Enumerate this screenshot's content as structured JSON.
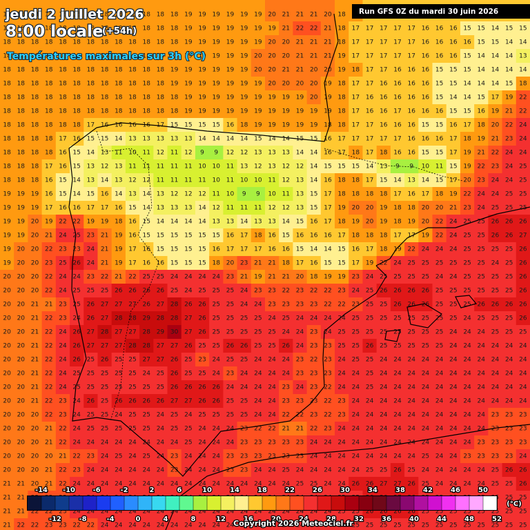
{
  "header": {
    "title": "jeudi 2 juillet 2026",
    "time": "8:00 locale",
    "lead": "(+54h)",
    "subtitle": "Températures maximales sur 3h (°C)",
    "run": "Run GFS 0Z du mardi 30 juin 2026"
  },
  "grid": {
    "rows": [
      [
        18,
        18,
        18,
        18,
        18,
        18,
        18,
        18,
        18,
        18,
        18,
        18,
        18,
        19,
        19,
        19,
        19,
        19,
        19,
        20,
        21,
        21,
        21,
        20,
        18,
        18,
        17,
        17,
        17,
        17,
        17,
        17,
        16,
        16,
        16,
        16,
        16,
        16
      ],
      [
        18,
        18,
        18,
        18,
        18,
        18,
        18,
        18,
        18,
        18,
        18,
        18,
        18,
        19,
        19,
        19,
        19,
        19,
        19,
        19,
        21,
        22,
        22,
        21,
        18,
        17,
        17,
        17,
        17,
        17,
        16,
        16,
        16,
        15,
        15,
        14,
        15,
        15
      ],
      [
        18,
        18,
        18,
        18,
        18,
        18,
        18,
        18,
        18,
        18,
        18,
        18,
        18,
        19,
        19,
        19,
        19,
        19,
        19,
        20,
        20,
        21,
        21,
        21,
        18,
        17,
        17,
        17,
        17,
        17,
        16,
        16,
        16,
        16,
        15,
        15,
        14,
        14
      ],
      [
        18,
        18,
        18,
        18,
        18,
        18,
        18,
        18,
        18,
        18,
        18,
        18,
        19,
        19,
        19,
        19,
        19,
        19,
        20,
        20,
        20,
        21,
        21,
        21,
        19,
        17,
        17,
        17,
        17,
        17,
        16,
        16,
        16,
        15,
        14,
        14,
        14,
        13
      ],
      [
        18,
        18,
        18,
        18,
        18,
        18,
        18,
        18,
        18,
        18,
        18,
        18,
        19,
        19,
        19,
        19,
        19,
        19,
        20,
        20,
        21,
        21,
        20,
        20,
        19,
        18,
        17,
        17,
        16,
        16,
        16,
        15,
        15,
        15,
        14,
        14,
        14,
        14
      ],
      [
        18,
        18,
        18,
        18,
        18,
        18,
        18,
        18,
        18,
        18,
        18,
        18,
        19,
        19,
        19,
        19,
        19,
        19,
        19,
        20,
        20,
        20,
        20,
        19,
        18,
        17,
        17,
        16,
        16,
        16,
        16,
        15,
        15,
        14,
        14,
        14,
        15,
        18
      ],
      [
        18,
        18,
        18,
        18,
        18,
        18,
        18,
        18,
        18,
        18,
        18,
        18,
        18,
        19,
        19,
        19,
        19,
        19,
        19,
        19,
        19,
        19,
        20,
        19,
        18,
        17,
        16,
        16,
        16,
        16,
        16,
        15,
        14,
        14,
        15,
        17,
        19,
        22
      ],
      [
        18,
        18,
        18,
        18,
        18,
        18,
        18,
        18,
        18,
        18,
        18,
        18,
        18,
        19,
        19,
        19,
        19,
        19,
        19,
        19,
        19,
        19,
        19,
        19,
        18,
        17,
        16,
        16,
        17,
        16,
        16,
        16,
        15,
        15,
        16,
        19,
        21,
        22
      ],
      [
        18,
        18,
        18,
        18,
        18,
        18,
        17,
        16,
        16,
        16,
        16,
        17,
        15,
        15,
        15,
        15,
        16,
        18,
        19,
        19,
        19,
        19,
        19,
        18,
        18,
        17,
        17,
        16,
        16,
        16,
        15,
        15,
        16,
        17,
        18,
        20,
        22,
        24
      ],
      [
        18,
        18,
        18,
        18,
        17,
        16,
        15,
        15,
        14,
        13,
        13,
        13,
        13,
        13,
        14,
        14,
        14,
        14,
        15,
        14,
        14,
        15,
        15,
        16,
        17,
        17,
        17,
        17,
        17,
        16,
        16,
        16,
        17,
        18,
        19,
        21,
        23,
        24
      ],
      [
        18,
        18,
        18,
        18,
        16,
        15,
        14,
        13,
        11,
        10,
        11,
        12,
        11,
        12,
        9,
        9,
        12,
        12,
        13,
        13,
        13,
        14,
        14,
        16,
        17,
        18,
        17,
        18,
        16,
        16,
        15,
        15,
        17,
        19,
        21,
        22,
        24,
        24
      ],
      [
        18,
        18,
        18,
        17,
        16,
        15,
        13,
        12,
        13,
        11,
        11,
        11,
        11,
        11,
        10,
        10,
        11,
        13,
        12,
        13,
        12,
        12,
        14,
        15,
        15,
        15,
        14,
        13,
        9,
        9,
        10,
        11,
        15,
        19,
        22,
        23,
        24,
        25
      ],
      [
        18,
        18,
        18,
        16,
        15,
        14,
        13,
        14,
        13,
        12,
        12,
        11,
        11,
        11,
        11,
        10,
        11,
        10,
        10,
        11,
        12,
        13,
        14,
        16,
        18,
        18,
        17,
        15,
        14,
        13,
        14,
        15,
        17,
        20,
        23,
        24,
        24,
        25
      ],
      [
        19,
        19,
        19,
        16,
        15,
        14,
        15,
        16,
        14,
        13,
        14,
        13,
        12,
        12,
        12,
        11,
        10,
        9,
        9,
        10,
        11,
        13,
        15,
        17,
        18,
        18,
        18,
        18,
        17,
        16,
        17,
        18,
        19,
        22,
        24,
        24,
        25,
        25
      ],
      [
        19,
        19,
        19,
        17,
        16,
        16,
        17,
        17,
        16,
        15,
        14,
        13,
        13,
        13,
        14,
        12,
        11,
        11,
        11,
        12,
        12,
        13,
        15,
        17,
        19,
        20,
        20,
        19,
        18,
        18,
        20,
        20,
        21,
        23,
        24,
        25,
        25,
        25
      ],
      [
        19,
        19,
        20,
        19,
        22,
        22,
        19,
        19,
        18,
        16,
        15,
        14,
        14,
        14,
        14,
        13,
        13,
        14,
        13,
        13,
        14,
        15,
        16,
        17,
        18,
        19,
        20,
        19,
        18,
        19,
        20,
        22,
        24,
        25,
        25,
        26,
        26,
        26
      ],
      [
        19,
        19,
        20,
        21,
        24,
        25,
        23,
        21,
        19,
        16,
        15,
        15,
        15,
        15,
        15,
        15,
        16,
        17,
        18,
        16,
        15,
        16,
        16,
        16,
        17,
        18,
        18,
        18,
        17,
        17,
        19,
        22,
        24,
        25,
        25,
        26,
        26,
        27
      ],
      [
        19,
        20,
        20,
        22,
        23,
        23,
        24,
        21,
        19,
        17,
        16,
        15,
        15,
        15,
        15,
        16,
        17,
        17,
        17,
        16,
        16,
        15,
        14,
        14,
        15,
        16,
        17,
        18,
        19,
        22,
        24,
        24,
        24,
        25,
        25,
        25,
        25,
        26
      ],
      [
        19,
        20,
        20,
        23,
        25,
        26,
        24,
        21,
        19,
        17,
        16,
        16,
        15,
        15,
        15,
        18,
        20,
        23,
        21,
        21,
        18,
        17,
        16,
        15,
        15,
        17,
        19,
        22,
        24,
        25,
        25,
        25,
        25,
        25,
        25,
        24,
        25,
        26
      ],
      [
        20,
        20,
        20,
        22,
        24,
        24,
        23,
        22,
        21,
        22,
        25,
        25,
        24,
        24,
        24,
        24,
        23,
        21,
        19,
        21,
        21,
        20,
        18,
        19,
        19,
        23,
        24,
        25,
        25,
        25,
        25,
        24,
        24,
        25,
        25,
        25,
        25,
        26
      ],
      [
        20,
        20,
        20,
        22,
        24,
        25,
        25,
        25,
        26,
        26,
        26,
        26,
        25,
        24,
        25,
        25,
        25,
        24,
        23,
        23,
        22,
        23,
        22,
        22,
        23,
        24,
        25,
        26,
        26,
        26,
        26,
        25,
        25,
        25,
        25,
        25,
        25,
        26
      ],
      [
        20,
        20,
        21,
        21,
        23,
        25,
        26,
        27,
        27,
        27,
        26,
        27,
        28,
        26,
        26,
        25,
        25,
        24,
        24,
        23,
        23,
        23,
        23,
        22,
        22,
        23,
        25,
        25,
        26,
        26,
        26,
        25,
        25,
        25,
        26,
        26,
        26,
        26
      ],
      [
        20,
        20,
        21,
        22,
        23,
        24,
        26,
        27,
        28,
        28,
        29,
        28,
        28,
        27,
        26,
        25,
        25,
        25,
        25,
        24,
        25,
        24,
        24,
        24,
        24,
        25,
        25,
        25,
        25,
        25,
        25,
        25,
        25,
        24,
        25,
        25,
        25,
        26
      ],
      [
        20,
        20,
        21,
        22,
        24,
        26,
        27,
        28,
        27,
        27,
        28,
        29,
        30,
        27,
        26,
        25,
        25,
        25,
        25,
        25,
        24,
        24,
        23,
        24,
        25,
        25,
        25,
        25,
        25,
        25,
        25,
        25,
        24,
        24,
        24,
        25,
        25,
        25
      ],
      [
        20,
        20,
        21,
        22,
        24,
        26,
        27,
        27,
        27,
        28,
        28,
        27,
        27,
        26,
        25,
        25,
        26,
        26,
        25,
        25,
        26,
        24,
        23,
        23,
        25,
        25,
        26,
        25,
        25,
        25,
        25,
        25,
        24,
        24,
        24,
        24,
        24,
        24
      ],
      [
        20,
        20,
        21,
        22,
        24,
        26,
        25,
        26,
        25,
        25,
        27,
        27,
        26,
        25,
        23,
        24,
        25,
        25,
        24,
        24,
        24,
        23,
        22,
        23,
        24,
        25,
        25,
        24,
        24,
        24,
        24,
        24,
        24,
        24,
        24,
        24,
        24,
        24
      ],
      [
        20,
        20,
        21,
        22,
        24,
        25,
        25,
        25,
        25,
        25,
        24,
        25,
        26,
        25,
        25,
        24,
        23,
        24,
        24,
        24,
        24,
        23,
        23,
        23,
        24,
        24,
        25,
        24,
        24,
        24,
        24,
        24,
        24,
        24,
        24,
        24,
        24,
        24
      ],
      [
        20,
        20,
        21,
        22,
        24,
        25,
        25,
        25,
        25,
        25,
        25,
        25,
        26,
        26,
        26,
        26,
        24,
        24,
        24,
        24,
        23,
        24,
        23,
        22,
        24,
        24,
        25,
        24,
        24,
        24,
        24,
        24,
        24,
        24,
        24,
        24,
        24,
        24
      ],
      [
        20,
        20,
        21,
        22,
        23,
        24,
        26,
        25,
        26,
        26,
        26,
        26,
        27,
        27,
        26,
        26,
        25,
        25,
        24,
        24,
        23,
        23,
        23,
        22,
        23,
        24,
        24,
        24,
        24,
        24,
        24,
        24,
        24,
        24,
        24,
        24,
        24,
        24
      ],
      [
        20,
        20,
        20,
        22,
        23,
        24,
        25,
        25,
        24,
        25,
        25,
        24,
        25,
        24,
        25,
        25,
        25,
        25,
        24,
        24,
        22,
        22,
        23,
        22,
        23,
        24,
        24,
        24,
        24,
        24,
        24,
        24,
        24,
        24,
        24,
        23,
        23,
        23
      ],
      [
        20,
        20,
        20,
        21,
        22,
        24,
        25,
        25,
        25,
        25,
        25,
        24,
        25,
        25,
        24,
        24,
        24,
        23,
        22,
        22,
        21,
        21,
        22,
        23,
        24,
        24,
        24,
        24,
        24,
        24,
        24,
        24,
        24,
        24,
        24,
        23,
        23,
        23
      ],
      [
        20,
        20,
        20,
        21,
        22,
        24,
        24,
        24,
        24,
        24,
        24,
        24,
        24,
        25,
        24,
        24,
        24,
        23,
        23,
        23,
        23,
        23,
        24,
        24,
        24,
        24,
        24,
        24,
        24,
        24,
        24,
        24,
        24,
        24,
        23,
        23,
        23,
        23
      ],
      [
        20,
        20,
        20,
        20,
        21,
        22,
        23,
        24,
        25,
        24,
        25,
        24,
        23,
        24,
        24,
        24,
        23,
        23,
        23,
        23,
        23,
        23,
        24,
        24,
        24,
        24,
        24,
        24,
        24,
        24,
        25,
        24,
        24,
        23,
        23,
        23,
        23,
        24
      ],
      [
        20,
        20,
        20,
        21,
        22,
        23,
        24,
        24,
        24,
        24,
        24,
        24,
        23,
        24,
        24,
        24,
        23,
        23,
        24,
        24,
        25,
        24,
        24,
        24,
        24,
        24,
        25,
        25,
        26,
        25,
        24,
        24,
        24,
        24,
        24,
        25,
        26,
        26
      ],
      [
        21,
        21,
        20,
        21,
        22,
        24,
        24,
        24,
        24,
        24,
        24,
        24,
        24,
        24,
        24,
        24,
        24,
        24,
        24,
        24,
        24,
        25,
        25,
        24,
        24,
        26,
        26,
        27,
        27,
        26,
        25,
        24,
        24,
        24,
        24,
        25,
        25,
        26
      ],
      [
        21,
        21,
        22,
        22,
        23,
        24,
        24,
        24,
        24,
        24,
        24,
        24,
        24,
        24,
        24,
        24,
        24,
        24,
        24,
        24,
        24,
        24,
        24,
        24,
        25,
        25,
        26,
        26,
        27,
        26,
        25,
        25,
        25,
        25,
        25,
        25,
        25,
        25
      ],
      [
        21,
        21,
        22,
        22,
        23,
        24,
        24,
        24,
        24,
        24,
        24,
        24,
        24,
        24,
        24,
        24,
        24,
        24,
        24,
        24,
        24,
        24,
        24,
        24,
        25,
        25,
        26,
        26,
        26,
        26,
        25,
        25,
        25,
        25,
        25,
        25,
        25,
        25
      ],
      [
        21,
        22,
        22,
        23,
        23,
        22,
        22,
        24,
        24,
        24,
        24,
        24,
        24,
        24,
        24,
        24,
        24,
        24,
        24,
        24,
        24,
        24,
        24,
        24,
        24,
        25,
        25,
        25,
        25,
        25,
        25,
        25,
        25,
        25,
        25,
        25,
        25,
        25
      ]
    ]
  },
  "legend": {
    "unit": "(°C)",
    "ticks": [
      -14,
      -12,
      -10,
      -8,
      -6,
      -4,
      -2,
      0,
      2,
      4,
      6,
      8,
      10,
      12,
      14,
      16,
      18,
      20,
      22,
      24,
      26,
      28,
      30,
      32,
      34,
      36,
      38,
      40,
      42,
      44,
      46,
      48,
      50,
      52
    ],
    "colors": [
      "#0b1438",
      "#0b2a6b",
      "#0f3c8c",
      "#1a2fa8",
      "#1e22c8",
      "#1a3cf0",
      "#2060ff",
      "#2a8cff",
      "#30b4f8",
      "#38d8f0",
      "#40f0c0",
      "#60f890",
      "#a8f040",
      "#d8f030",
      "#f4f060",
      "#fff090",
      "#ffc830",
      "#ff9a10",
      "#ff7818",
      "#ff5020",
      "#f43030",
      "#e01818",
      "#c80c0c",
      "#aa0010",
      "#880010",
      "#700818",
      "#6a0a40",
      "#8a0870",
      "#b010a0",
      "#d010d0",
      "#f030f0",
      "#ff70ff",
      "#ffa8ff",
      "#ffffff"
    ]
  },
  "footer": {
    "copyright": "Copyright 2026 Meteociel.fr"
  }
}
